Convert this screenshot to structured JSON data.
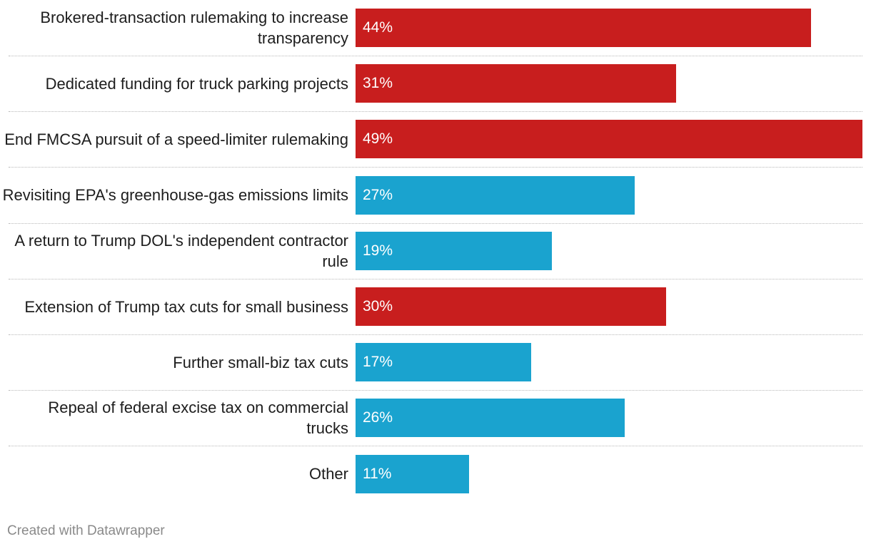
{
  "chart_data": {
    "type": "bar",
    "orientation": "horizontal",
    "categories": [
      "Brokered-transaction rulemaking to increase transparency",
      "Dedicated funding for truck parking projects",
      "End FMCSA pursuit of a speed-limiter rulemaking",
      "Revisiting EPA's greenhouse-gas emissions limits",
      "A return to Trump DOL's independent contractor rule",
      "Extension of Trump tax cuts for small business",
      "Further small-biz tax cuts",
      "Repeal of federal excise tax on commercial trucks",
      "Other"
    ],
    "values": [
      44,
      31,
      49,
      27,
      19,
      30,
      17,
      26,
      11
    ],
    "value_labels": [
      "44%",
      "31%",
      "49%",
      "27%",
      "19%",
      "30%",
      "17%",
      "26%",
      "11%"
    ],
    "highlight": [
      true,
      true,
      true,
      false,
      false,
      true,
      false,
      false,
      false
    ],
    "colors": {
      "highlight": "#c81e1e",
      "default": "#1aa3cf"
    },
    "xlim": [
      0,
      49
    ],
    "title": "",
    "xlabel": "",
    "ylabel": ""
  },
  "footer": {
    "credit": "Created with Datawrapper"
  }
}
